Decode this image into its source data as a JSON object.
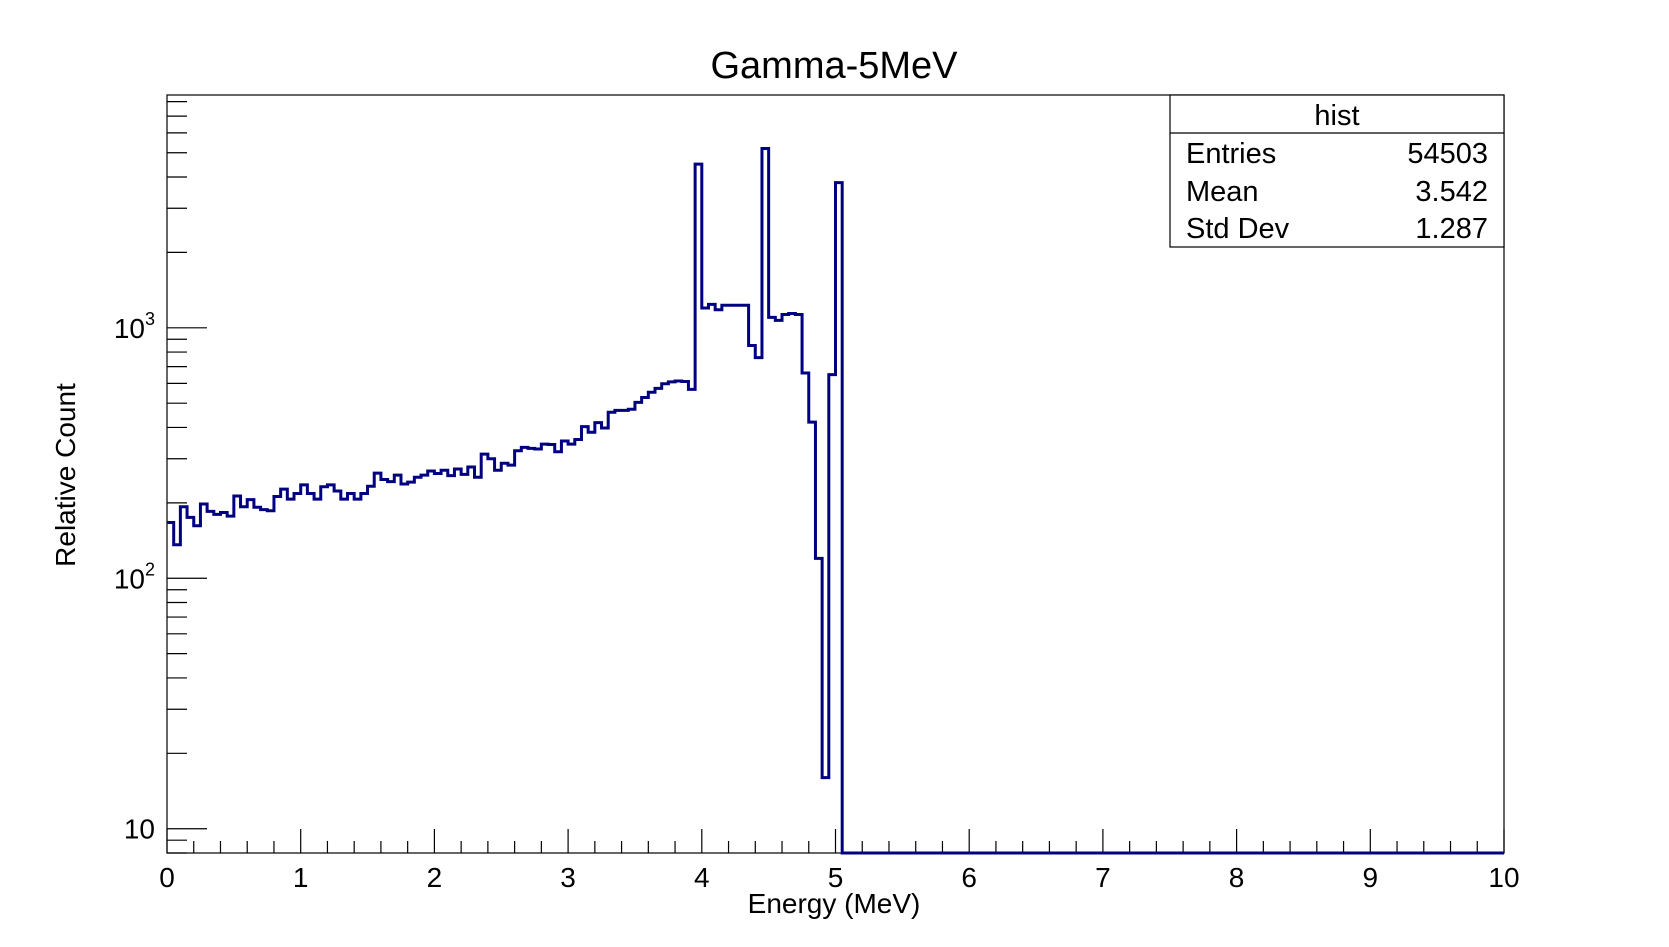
{
  "chart_data": {
    "type": "histogram",
    "title": "Gamma-5MeV",
    "xlabel": "Energy (MeV)",
    "ylabel": "Relative Count",
    "x_range": [
      0,
      10
    ],
    "y_range": [
      8,
      8500
    ],
    "y_scale": "log",
    "x_ticks": [
      "0",
      "1",
      "2",
      "3",
      "4",
      "5",
      "6",
      "7",
      "8",
      "9",
      "10"
    ],
    "y_ticks": [
      {
        "value": 10,
        "base": "10",
        "exp": ""
      },
      {
        "value": 100,
        "base": "10",
        "exp": "2"
      },
      {
        "value": 1000,
        "base": "10",
        "exp": "3"
      }
    ],
    "bin_width": 0.05,
    "series": [
      {
        "color": "#000080",
        "values": [
          167,
          136,
          193,
          175,
          162,
          198,
          185,
          180,
          183,
          177,
          213,
          193,
          206,
          192,
          188,
          186,
          212,
          227,
          207,
          218,
          236,
          218,
          207,
          232,
          236,
          223,
          207,
          218,
          207,
          218,
          233,
          263,
          248,
          243,
          258,
          238,
          242,
          253,
          258,
          268,
          262,
          270,
          257,
          273,
          260,
          278,
          253,
          313,
          300,
          270,
          288,
          283,
          323,
          333,
          330,
          328,
          343,
          342,
          320,
          353,
          343,
          358,
          403,
          383,
          418,
          398,
          460,
          468,
          468,
          473,
          504,
          527,
          553,
          573,
          598,
          608,
          613,
          610,
          568,
          4500,
          1200,
          1240,
          1180,
          1230,
          1230,
          1230,
          1230,
          850,
          760,
          5200,
          1100,
          1070,
          1130,
          1140,
          1130,
          660,
          420,
          120,
          16,
          650,
          3800,
          0,
          0,
          0,
          0,
          0,
          0,
          0,
          0,
          0,
          0,
          0,
          0,
          0,
          0,
          0,
          0,
          0,
          0,
          0,
          0,
          0,
          0,
          0,
          0,
          0,
          0,
          0,
          0,
          0,
          0,
          0,
          0,
          0,
          0,
          0,
          0,
          0,
          0,
          0,
          0,
          0,
          0,
          0,
          0,
          0,
          0,
          0,
          0,
          0,
          0,
          0,
          0,
          0,
          0,
          0,
          0,
          0,
          0,
          0,
          0,
          0,
          0,
          0,
          0,
          0,
          0,
          0,
          0,
          0,
          0,
          0,
          0,
          0,
          0,
          0,
          0,
          0,
          0,
          0,
          0,
          0,
          0,
          0,
          0,
          0,
          0,
          0,
          0,
          0,
          0,
          0,
          0,
          0,
          0,
          0,
          0,
          0,
          0,
          0
        ]
      }
    ],
    "stats_box": {
      "title": "hist",
      "rows": [
        {
          "label": "Entries",
          "value": "54503"
        },
        {
          "label": "Mean",
          "value": "3.542"
        },
        {
          "label": "Std Dev",
          "value": "1.287"
        }
      ]
    }
  }
}
